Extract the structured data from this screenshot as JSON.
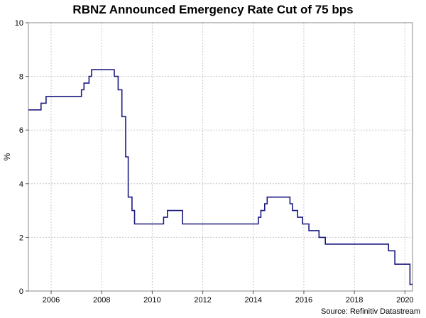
{
  "chart_data": {
    "type": "line",
    "title": "RBNZ Announced Emergency Rate Cut of 75 bps",
    "xlabel": "",
    "ylabel": "%",
    "source": "Source: Refinitiv Datastream",
    "xlim": [
      2005.1,
      2020.3
    ],
    "ylim": [
      0,
      10
    ],
    "xticks": [
      2006,
      2008,
      2010,
      2012,
      2014,
      2016,
      2018,
      2020
    ],
    "yticks": [
      0,
      2,
      4,
      6,
      8,
      10
    ],
    "grid": true,
    "line_color": "#1a1a80",
    "series": [
      {
        "name": "",
        "step": true,
        "points": [
          [
            2005.1,
            6.75
          ],
          [
            2005.6,
            7.0
          ],
          [
            2005.8,
            7.25
          ],
          [
            2007.2,
            7.5
          ],
          [
            2007.3,
            7.75
          ],
          [
            2007.5,
            8.0
          ],
          [
            2007.6,
            8.25
          ],
          [
            2008.5,
            8.0
          ],
          [
            2008.65,
            7.5
          ],
          [
            2008.8,
            6.5
          ],
          [
            2008.95,
            5.0
          ],
          [
            2009.05,
            3.5
          ],
          [
            2009.2,
            3.0
          ],
          [
            2009.3,
            2.5
          ],
          [
            2010.45,
            2.75
          ],
          [
            2010.6,
            3.0
          ],
          [
            2011.2,
            2.5
          ],
          [
            2014.2,
            2.75
          ],
          [
            2014.3,
            3.0
          ],
          [
            2014.45,
            3.25
          ],
          [
            2014.55,
            3.5
          ],
          [
            2015.45,
            3.25
          ],
          [
            2015.55,
            3.0
          ],
          [
            2015.75,
            2.75
          ],
          [
            2015.95,
            2.5
          ],
          [
            2016.2,
            2.25
          ],
          [
            2016.6,
            2.0
          ],
          [
            2016.85,
            1.75
          ],
          [
            2019.35,
            1.5
          ],
          [
            2019.6,
            1.0
          ],
          [
            2020.2,
            0.25
          ],
          [
            2020.3,
            0.25
          ]
        ]
      }
    ]
  }
}
